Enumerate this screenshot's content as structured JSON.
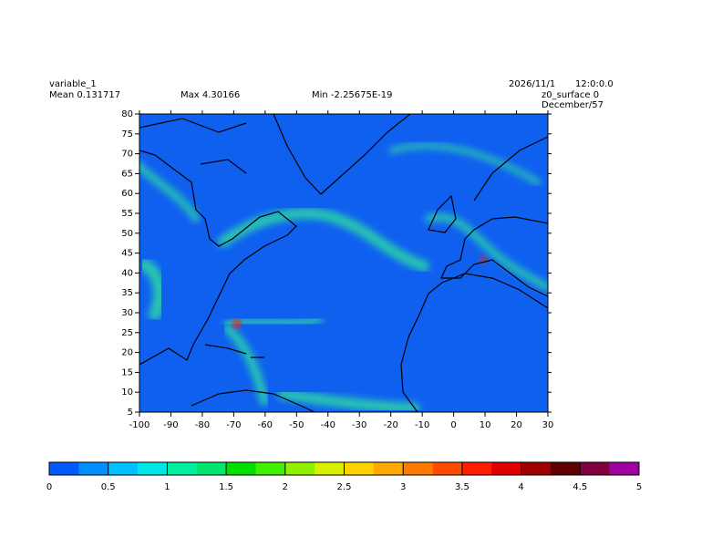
{
  "header": {
    "variable": "variable_1",
    "mean": "Mean 0.131717",
    "max": "Max 4.30166",
    "min": "Min -2.25675E-19",
    "date": "2026/11/1",
    "time": "12:0:0.0",
    "level": "z0_surface 0",
    "period": "December/57"
  },
  "map": {
    "xlim": [
      -100,
      30
    ],
    "ylim": [
      5,
      80
    ],
    "xticks": [
      -100,
      -90,
      -80,
      -70,
      -60,
      -50,
      -40,
      -30,
      -20,
      -10,
      0,
      10,
      20,
      30
    ],
    "yticks": [
      5,
      10,
      15,
      20,
      25,
      30,
      35,
      40,
      45,
      50,
      55,
      60,
      65,
      70,
      75,
      80
    ]
  },
  "colorbar": {
    "lim": [
      0,
      5
    ],
    "ticks": [
      0,
      0.5,
      1,
      1.5,
      2,
      2.5,
      3,
      3.5,
      4,
      4.5,
      5
    ],
    "colors": [
      "#005aff",
      "#0090ff",
      "#00c0ff",
      "#00e6e6",
      "#00f0a0",
      "#00e66e",
      "#00e000",
      "#40f000",
      "#90f000",
      "#d8f000",
      "#ffd200",
      "#ffa800",
      "#ff7a00",
      "#ff4b00",
      "#ff1e00",
      "#e00000",
      "#a00000",
      "#600000",
      "#800040",
      "#a000a0"
    ]
  }
}
